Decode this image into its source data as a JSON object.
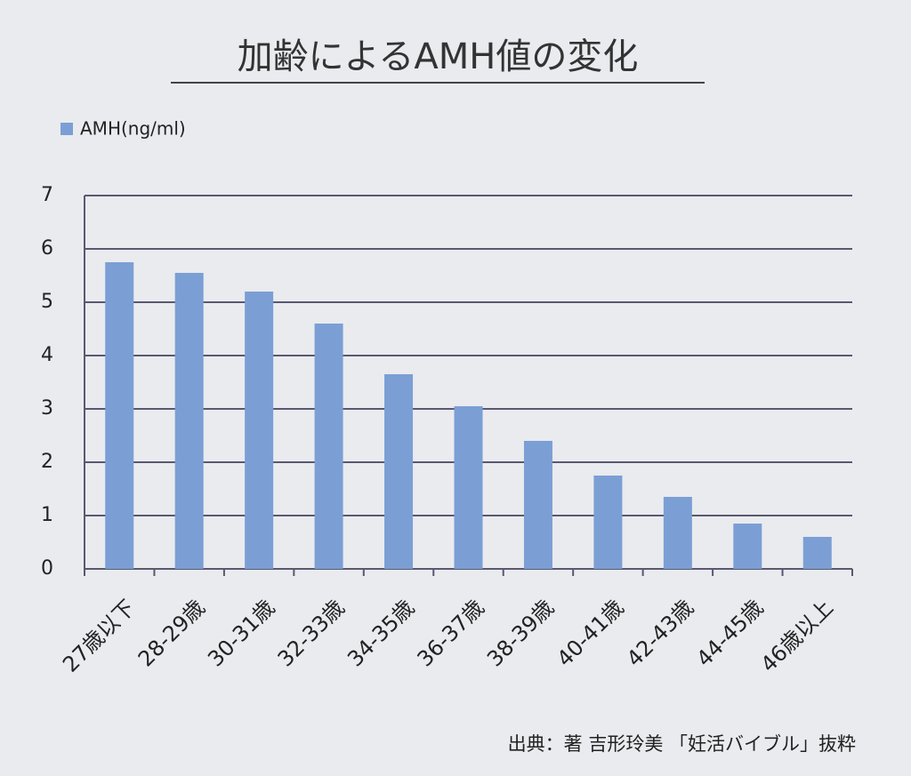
{
  "chart_data": {
    "type": "bar",
    "title": "加齢によるAMH値の変化",
    "categories": [
      "27歳以下",
      "28-29歳",
      "30-31歳",
      "32-33歳",
      "34-35歳",
      "36-37歳",
      "38-39歳",
      "40-41歳",
      "42-43歳",
      "44-45歳",
      "46歳以上"
    ],
    "series": [
      {
        "name": "AMH(ng/ml)",
        "color": "#7b9fd5",
        "values": [
          5.75,
          5.55,
          5.2,
          4.6,
          3.65,
          3.05,
          2.4,
          1.75,
          1.35,
          0.85,
          0.6
        ]
      }
    ],
    "ylim": [
      0,
      7
    ],
    "yticks": [
      0,
      1,
      2,
      3,
      4,
      5,
      6,
      7
    ],
    "grid": true,
    "legend": "top-left",
    "source": "出典：著 吉形玲美 「妊活バイブル」抜粋"
  }
}
